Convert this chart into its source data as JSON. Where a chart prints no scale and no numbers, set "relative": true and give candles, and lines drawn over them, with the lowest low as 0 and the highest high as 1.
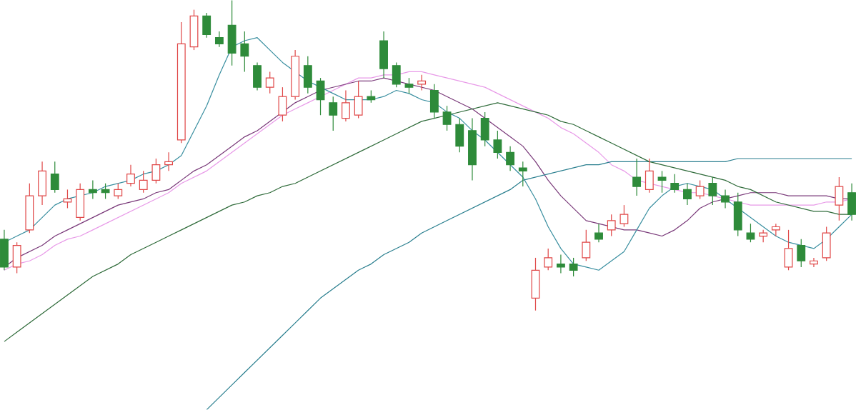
{
  "chart_data": {
    "type": "candlestick",
    "relative": true,
    "categories": [
      null,
      null,
      null,
      null,
      null,
      null,
      null,
      null,
      null,
      null,
      null,
      null,
      null,
      null,
      null,
      null,
      null,
      null,
      null,
      null,
      null,
      null,
      null,
      null,
      null,
      null,
      null,
      null,
      null,
      null,
      null,
      null,
      null,
      null,
      null,
      null,
      null,
      null,
      null,
      null,
      null,
      null,
      null,
      null,
      null,
      null,
      null,
      null,
      null,
      null,
      null,
      null,
      null,
      null,
      null,
      null,
      null,
      null,
      null,
      null,
      null,
      null,
      null,
      null,
      null,
      null,
      null,
      null
    ],
    "ohlc": [
      [
        0.23,
        0.26,
        0.13,
        0.14
      ],
      [
        0.14,
        0.22,
        0.12,
        0.21
      ],
      [
        0.26,
        0.41,
        0.25,
        0.37
      ],
      [
        0.37,
        0.48,
        0.34,
        0.45
      ],
      [
        0.44,
        0.48,
        0.38,
        0.39
      ],
      [
        0.35,
        0.39,
        0.33,
        0.36
      ],
      [
        0.3,
        0.41,
        0.29,
        0.39
      ],
      [
        0.39,
        0.42,
        0.36,
        0.38
      ],
      [
        0.39,
        0.41,
        0.36,
        0.38
      ],
      [
        0.37,
        0.41,
        0.36,
        0.39
      ],
      [
        0.41,
        0.47,
        0.4,
        0.44
      ],
      [
        0.39,
        0.45,
        0.38,
        0.42
      ],
      [
        0.42,
        0.49,
        0.41,
        0.47
      ],
      [
        0.47,
        0.51,
        0.45,
        0.48
      ],
      [
        0.55,
        0.93,
        0.54,
        0.86
      ],
      [
        0.85,
        0.97,
        0.84,
        0.95
      ],
      [
        0.95,
        0.96,
        0.88,
        0.89
      ],
      [
        0.88,
        0.9,
        0.85,
        0.86
      ],
      [
        0.92,
        1.0,
        0.79,
        0.83
      ],
      [
        0.86,
        0.9,
        0.77,
        0.82
      ],
      [
        0.79,
        0.8,
        0.71,
        0.72
      ],
      [
        0.72,
        0.77,
        0.7,
        0.75
      ],
      [
        0.63,
        0.72,
        0.61,
        0.69
      ],
      [
        0.69,
        0.84,
        0.68,
        0.82
      ],
      [
        0.79,
        0.82,
        0.7,
        0.72
      ],
      [
        0.74,
        0.75,
        0.63,
        0.68
      ],
      [
        0.67,
        0.69,
        0.58,
        0.63
      ],
      [
        0.62,
        0.71,
        0.61,
        0.67
      ],
      [
        0.63,
        0.74,
        0.62,
        0.69
      ],
      [
        0.69,
        0.71,
        0.67,
        0.68
      ],
      [
        0.87,
        0.9,
        0.75,
        0.78
      ],
      [
        0.79,
        0.8,
        0.72,
        0.73
      ],
      [
        0.73,
        0.75,
        0.7,
        0.72
      ],
      [
        0.73,
        0.76,
        0.71,
        0.74
      ],
      [
        0.71,
        0.73,
        0.62,
        0.64
      ],
      [
        0.64,
        0.66,
        0.58,
        0.6
      ],
      [
        0.6,
        0.62,
        0.51,
        0.53
      ],
      [
        0.58,
        0.62,
        0.42,
        0.47
      ],
      [
        0.62,
        0.64,
        0.53,
        0.55
      ],
      [
        0.55,
        0.58,
        0.49,
        0.51
      ],
      [
        0.51,
        0.53,
        0.45,
        0.47
      ],
      [
        0.46,
        0.48,
        0.4,
        0.45
      ],
      [
        0.04,
        0.17,
        0,
        0.13
      ],
      [
        0.14,
        0.2,
        0.13,
        0.17
      ],
      [
        0.15,
        0.18,
        0.12,
        0.14
      ],
      [
        0.15,
        0.17,
        0.11,
        0.13
      ],
      [
        0.17,
        0.26,
        0.16,
        0.22
      ],
      [
        0.25,
        0.28,
        0.22,
        0.23
      ],
      [
        0.26,
        0.31,
        0.24,
        0.29
      ],
      [
        0.28,
        0.34,
        0.27,
        0.31
      ],
      [
        0.43,
        0.49,
        0.37,
        0.4
      ],
      [
        0.39,
        0.49,
        0.38,
        0.45
      ],
      [
        0.43,
        0.45,
        0.38,
        0.42
      ],
      [
        0.41,
        0.44,
        0.38,
        0.39
      ],
      [
        0.39,
        0.41,
        0.34,
        0.36
      ],
      [
        0.37,
        0.42,
        0.36,
        0.4
      ],
      [
        0.41,
        0.43,
        0.34,
        0.37
      ],
      [
        0.37,
        0.39,
        0.33,
        0.35
      ],
      [
        0.35,
        0.38,
        0.24,
        0.26
      ],
      [
        0.25,
        0.28,
        0.22,
        0.23
      ],
      [
        0.24,
        0.26,
        0.22,
        0.25
      ],
      [
        0.26,
        0.28,
        0.24,
        0.27
      ],
      [
        0.14,
        0.26,
        0.13,
        0.2
      ],
      [
        0.21,
        0.23,
        0.14,
        0.16
      ],
      [
        0.15,
        0.17,
        0.14,
        0.16
      ],
      [
        0.17,
        0.27,
        0.16,
        0.25
      ],
      [
        0.34,
        0.43,
        0.29,
        0.4
      ],
      [
        0.38,
        0.41,
        0.29,
        0.31
      ]
    ],
    "colors": [
      "#2e8b3a",
      "#e04848",
      "#e04848",
      "#e04848",
      "#2e8b3a",
      "#e04848",
      "#e04848",
      "#2e8b3a",
      "#2e8b3a",
      "#e04848",
      "#e04848",
      "#e04848",
      "#e04848",
      "#e04848",
      "#e04848",
      "#e04848",
      "#2e8b3a",
      "#2e8b3a",
      "#2e8b3a",
      "#2e8b3a",
      "#2e8b3a",
      "#e04848",
      "#e04848",
      "#e04848",
      "#2e8b3a",
      "#2e8b3a",
      "#2e8b3a",
      "#e04848",
      "#e04848",
      "#2e8b3a",
      "#2e8b3a",
      "#2e8b3a",
      "#2e8b3a",
      "#e04848",
      "#2e8b3a",
      "#2e8b3a",
      "#2e8b3a",
      "#2e8b3a",
      "#2e8b3a",
      "#2e8b3a",
      "#2e8b3a",
      "#2e8b3a",
      "#e04848",
      "#e04848",
      "#2e8b3a",
      "#2e8b3a",
      "#e04848",
      "#2e8b3a",
      "#e04848",
      "#e04848",
      "#2e8b3a",
      "#e04848",
      "#2e8b3a",
      "#2e8b3a",
      "#2e8b3a",
      "#e04848",
      "#2e8b3a",
      "#2e8b3a",
      "#2e8b3a",
      "#2e8b3a",
      "#e04848",
      "#e04848",
      "#e04848",
      "#2e8b3a",
      "#e04848",
      "#e04848",
      "#e04848",
      "#2e8b3a"
    ],
    "series": [
      {
        "type": "line",
        "color": "#e89ae8",
        "values": [
          0.13,
          0.15,
          0.16,
          0.18,
          0.21,
          0.23,
          0.24,
          0.26,
          0.28,
          0.3,
          0.32,
          0.34,
          0.36,
          0.38,
          0.41,
          0.43,
          0.45,
          0.48,
          0.51,
          0.54,
          0.57,
          0.6,
          0.63,
          0.65,
          0.67,
          0.69,
          0.71,
          0.73,
          0.75,
          0.75,
          0.76,
          0.76,
          0.77,
          0.77,
          0.76,
          0.75,
          0.74,
          0.73,
          0.72,
          0.7,
          0.68,
          0.66,
          0.64,
          0.62,
          0.59,
          0.57,
          0.54,
          0.51,
          0.47,
          0.45,
          0.42,
          0.41,
          0.4,
          0.39,
          0.38,
          0.38,
          0.37,
          0.36,
          0.35,
          0.34,
          0.34,
          0.34,
          0.34,
          0.34,
          0.34,
          0.35,
          0.35,
          0.36
        ]
      },
      {
        "type": "line",
        "color": "#7a3a7a",
        "values": [
          0.14,
          0.17,
          0.19,
          0.21,
          0.24,
          0.26,
          0.28,
          0.3,
          0.32,
          0.34,
          0.35,
          0.36,
          0.38,
          0.39,
          0.42,
          0.45,
          0.47,
          0.5,
          0.53,
          0.56,
          0.58,
          0.61,
          0.64,
          0.67,
          0.69,
          0.71,
          0.72,
          0.73,
          0.74,
          0.74,
          0.75,
          0.74,
          0.73,
          0.72,
          0.71,
          0.69,
          0.67,
          0.65,
          0.62,
          0.59,
          0.56,
          0.53,
          0.48,
          0.42,
          0.37,
          0.33,
          0.29,
          0.28,
          0.27,
          0.26,
          0.26,
          0.25,
          0.24,
          0.26,
          0.29,
          0.33,
          0.35,
          0.36,
          0.37,
          0.38,
          0.38,
          0.38,
          0.37,
          0.37,
          0.37,
          0.37,
          0.36,
          0.36
        ]
      },
      {
        "type": "line",
        "color": "#3a8fa0",
        "values": [
          0.22,
          0.24,
          0.26,
          0.3,
          0.34,
          0.36,
          0.37,
          0.38,
          0.4,
          0.41,
          0.42,
          0.44,
          0.45,
          0.47,
          0.5,
          0.58,
          0.66,
          0.76,
          0.85,
          0.87,
          0.88,
          0.84,
          0.8,
          0.77,
          0.74,
          0.72,
          0.7,
          0.68,
          0.68,
          0.68,
          0.69,
          0.71,
          0.7,
          0.68,
          0.67,
          0.64,
          0.62,
          0.58,
          0.55,
          0.51,
          0.47,
          0.43,
          0.36,
          0.27,
          0.2,
          0.15,
          0.14,
          0.13,
          0.16,
          0.19,
          0.26,
          0.33,
          0.37,
          0.4,
          0.41,
          0.4,
          0.39,
          0.36,
          0.33,
          0.3,
          0.27,
          0.24,
          0.22,
          0.21,
          0.2,
          0.23,
          0.27,
          0.31
        ]
      },
      {
        "type": "line",
        "color": "#2a7f8f",
        "values": [
          null,
          null,
          null,
          null,
          null,
          null,
          null,
          null,
          null,
          null,
          null,
          null,
          null,
          null,
          null,
          null,
          -0.32,
          -0.28,
          -0.24,
          -0.2,
          -0.16,
          -0.12,
          -0.08,
          -0.04,
          0.0,
          0.04,
          0.07,
          0.1,
          0.13,
          0.15,
          0.18,
          0.2,
          0.22,
          0.25,
          0.27,
          0.29,
          0.31,
          0.33,
          0.35,
          0.37,
          0.39,
          0.42,
          0.43,
          0.44,
          0.45,
          0.46,
          0.47,
          0.47,
          0.48,
          0.48,
          0.48,
          0.48,
          0.48,
          0.48,
          0.48,
          0.48,
          0.48,
          0.48,
          0.49,
          0.49,
          0.49,
          0.49,
          0.49,
          0.49,
          0.49,
          0.49,
          0.49,
          0.49
        ]
      },
      {
        "type": "line",
        "color": "#2f6b3a",
        "values": [
          -0.1,
          -0.07,
          -0.04,
          -0.01,
          0.02,
          0.05,
          0.08,
          0.11,
          0.13,
          0.15,
          0.18,
          0.2,
          0.22,
          0.24,
          0.26,
          0.28,
          0.3,
          0.32,
          0.34,
          0.35,
          0.37,
          0.38,
          0.4,
          0.41,
          0.43,
          0.45,
          0.47,
          0.49,
          0.51,
          0.53,
          0.55,
          0.57,
          0.59,
          0.61,
          0.62,
          0.63,
          0.64,
          0.65,
          0.66,
          0.67,
          0.66,
          0.65,
          0.64,
          0.63,
          0.61,
          0.6,
          0.58,
          0.56,
          0.54,
          0.52,
          0.5,
          0.48,
          0.47,
          0.46,
          0.45,
          0.44,
          0.43,
          0.42,
          0.4,
          0.39,
          0.37,
          0.35,
          0.34,
          0.33,
          0.32,
          0.32,
          0.31,
          0.31
        ]
      }
    ]
  }
}
